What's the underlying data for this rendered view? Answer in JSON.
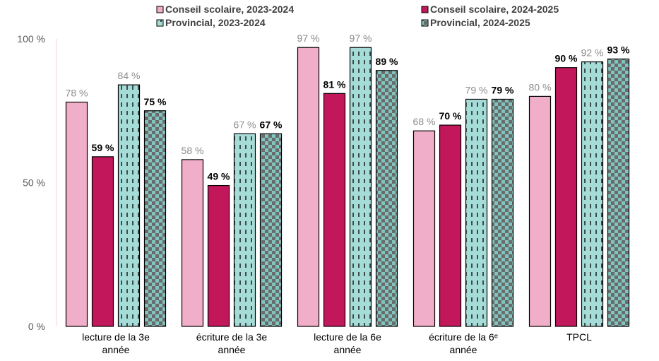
{
  "chart_data": {
    "type": "bar",
    "categories": [
      [
        "lecture de la 3e",
        "année"
      ],
      [
        "écriture  de la 3e",
        "année"
      ],
      [
        "lecture de la 6e",
        "année"
      ],
      [
        "écriture  de la 6ᵉ",
        "année"
      ],
      [
        "TPCL"
      ]
    ],
    "series": [
      {
        "name": "Conseil scolaire, 2023-2024",
        "values": [
          78,
          58,
          97,
          68,
          80
        ],
        "labels": [
          "78 %",
          "58 %",
          "97 %",
          "68 %",
          "80 %"
        ],
        "color": "#f1aec8",
        "pattern": "solid",
        "label_style": "light"
      },
      {
        "name": "Conseil scolaire, 2024-2025",
        "values": [
          59,
          49,
          81,
          70,
          90
        ],
        "labels": [
          "59 %",
          "49 %",
          "81 %",
          "70 %",
          "90 %"
        ],
        "color": "#c2185b",
        "pattern": "solid",
        "label_style": "bold"
      },
      {
        "name": "Provincial, 2023-2024",
        "values": [
          84,
          67,
          97,
          79,
          92
        ],
        "labels": [
          "84 %",
          "67 %",
          "97 %",
          "79 %",
          "92 %"
        ],
        "color": "#a6dcd8",
        "pattern": "dashed-lines",
        "label_style": "light"
      },
      {
        "name": "Provincial, 2024-2025",
        "values": [
          75,
          67,
          89,
          79,
          93
        ],
        "labels": [
          "75 %",
          "67 %",
          "89 %",
          "79 %",
          "93 %"
        ],
        "color": "#7fc4be",
        "pattern": "checkerboard",
        "label_style": "bold"
      }
    ],
    "yticks": [
      {
        "value": 0,
        "label": "0 %"
      },
      {
        "value": 50,
        "label": "50 %"
      },
      {
        "value": 100,
        "label": "100 %"
      }
    ],
    "ylim": [
      0,
      100
    ],
    "legend_position": "top",
    "grid": false
  }
}
